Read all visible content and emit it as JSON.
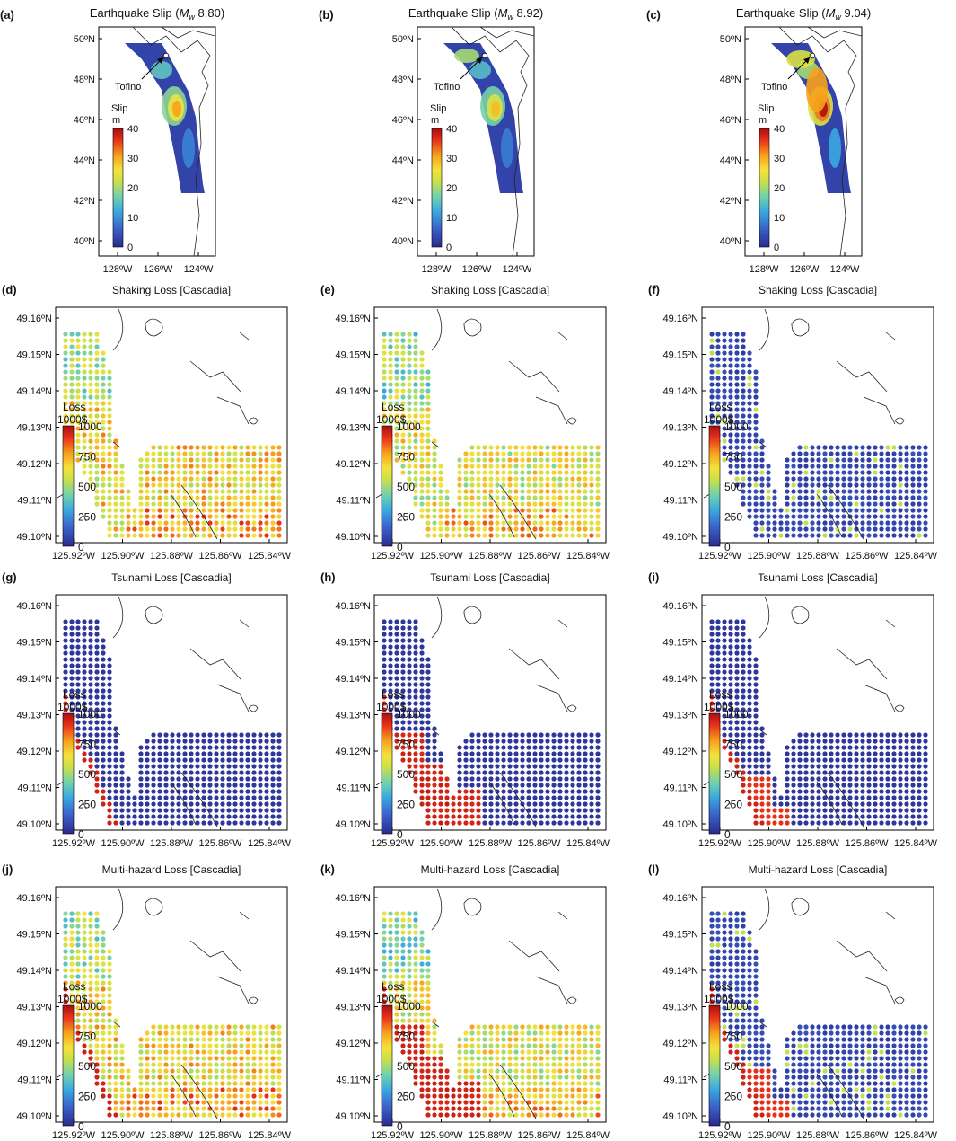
{
  "colors": {
    "frame": "#000000",
    "coast": "#111111",
    "colormap": [
      "#2a2a8c",
      "#3a5fc8",
      "#3aa8e0",
      "#6fd0b0",
      "#c8e04a",
      "#f5e23a",
      "#f7a21c",
      "#e8321a",
      "#a80f10"
    ]
  },
  "top_row": {
    "panels": [
      {
        "letter": "(a)",
        "title_prefix": "Earthquake Slip (",
        "mw": "M",
        "mw_sub": "w",
        "title_value": " 8.80)",
        "slip_peak": 30
      },
      {
        "letter": "(b)",
        "title_prefix": "Earthquake Slip (",
        "mw": "M",
        "mw_sub": "w",
        "title_value": " 8.92)",
        "slip_peak": 28
      },
      {
        "letter": "(c)",
        "title_prefix": "Earthquake Slip (",
        "mw": "M",
        "mw_sub": "w",
        "title_value": " 9.04)",
        "slip_peak": 40
      }
    ],
    "lat_ticks": [
      "50ºN",
      "48ºN",
      "46ºN",
      "44ºN",
      "42ºN",
      "40ºN"
    ],
    "lon_ticks": [
      "128ºW",
      "126ºW",
      "124ºW"
    ],
    "place_label": "Tofino",
    "colorbar": {
      "title": "Slip",
      "unit": "m",
      "ticks": [
        "40",
        "30",
        "20",
        "10",
        "0"
      ],
      "range": [
        0,
        40
      ]
    }
  },
  "loss_rows": [
    {
      "titles": [
        "Shaking Loss [Cascadia]",
        "Shaking Loss [Cascadia]",
        "Shaking Loss [Cascadia]"
      ],
      "letters": [
        "(d)",
        "(e)",
        "(f)"
      ]
    },
    {
      "titles": [
        "Tsunami Loss [Cascadia]",
        "Tsunami Loss [Cascadia]",
        "Tsunami Loss [Cascadia]"
      ],
      "letters": [
        "(g)",
        "(h)",
        "(i)"
      ]
    },
    {
      "titles": [
        "Multi-hazard Loss [Cascadia]",
        "Multi-hazard Loss [Cascadia]",
        "Multi-hazard Loss [Cascadia]"
      ],
      "letters": [
        "(j)",
        "(k)",
        "(l)"
      ]
    }
  ],
  "loss_axes": {
    "lat_ticks": [
      "49.16ºN",
      "49.15ºN",
      "49.14ºN",
      "49.13ºN",
      "49.12ºN",
      "49.11ºN",
      "49.10ºN"
    ],
    "lon_ticks": [
      "125.92ºW",
      "125.90ºW",
      "125.88ºW",
      "125.86ºW",
      "125.84ºW"
    ],
    "colorbar": {
      "title": "Loss",
      "unit": "1000$",
      "ticks": [
        "1000",
        "750",
        "500",
        "250",
        "0"
      ],
      "range": [
        0,
        1000
      ]
    }
  }
}
